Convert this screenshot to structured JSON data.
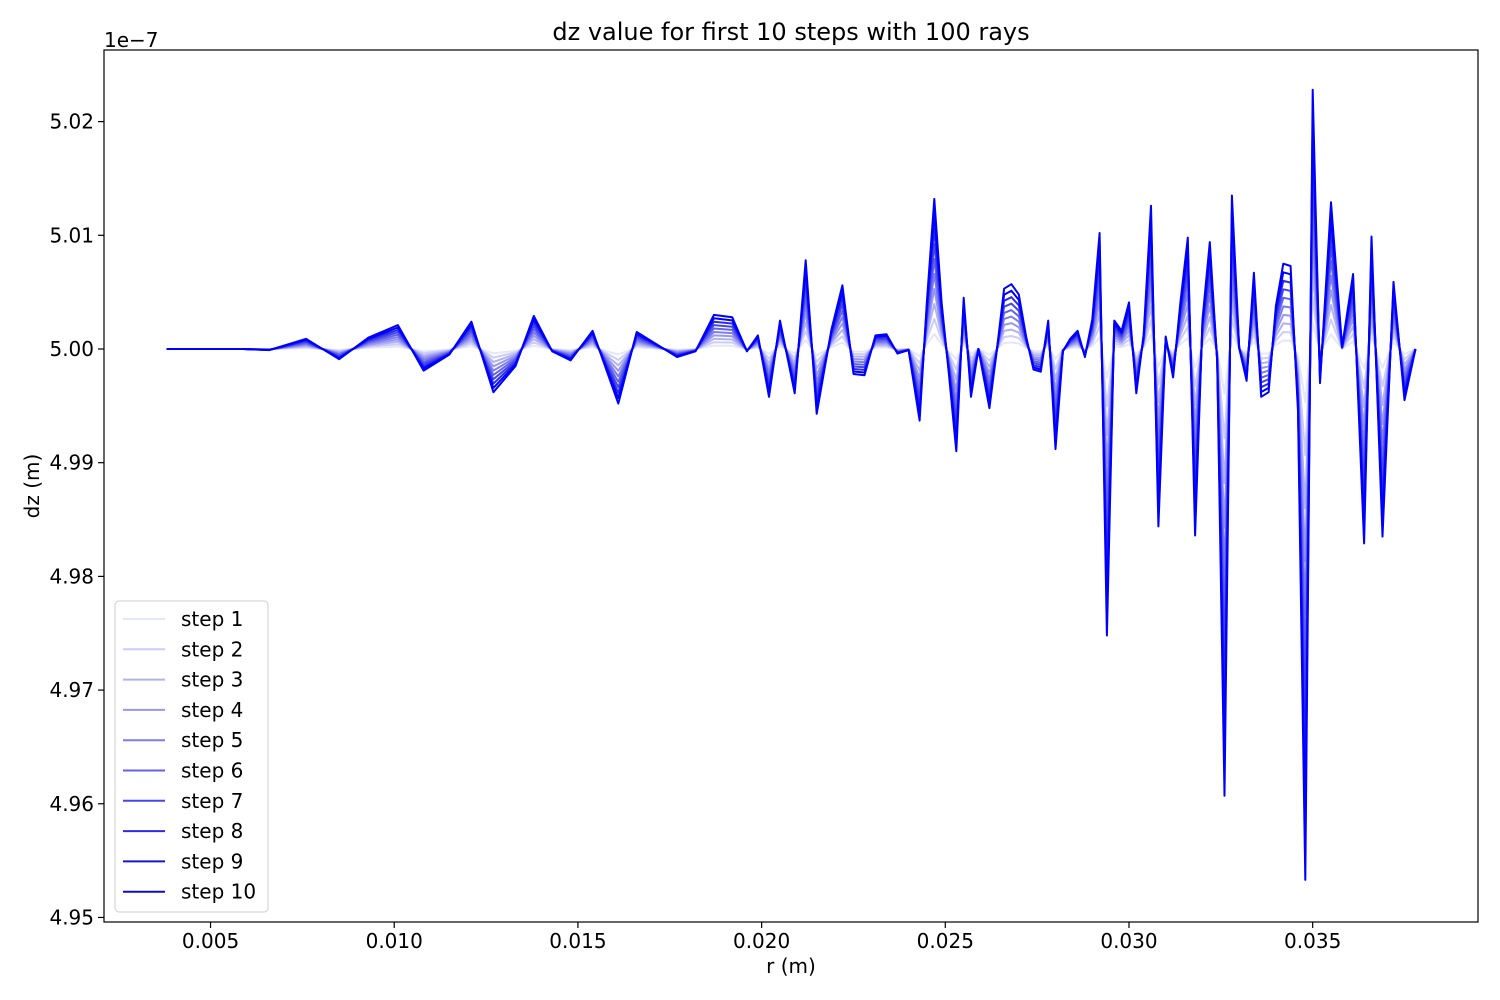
{
  "chart_data": {
    "type": "line",
    "title": "dz value for first 10 steps with 100 rays",
    "xlabel": "r (m)",
    "ylabel": "dz (m)",
    "y_offset_text": "1e−7",
    "xlim": [
      0.0021,
      0.0395
    ],
    "ylim": [
      4.9496,
      5.0263
    ],
    "y_scale_factor": 1e-07,
    "xticks": [
      0.005,
      0.01,
      0.015,
      0.02,
      0.025,
      0.03,
      0.035
    ],
    "xtick_labels": [
      "0.005",
      "0.010",
      "0.015",
      "0.020",
      "0.025",
      "0.030",
      "0.035"
    ],
    "yticks": [
      4.95,
      4.96,
      4.97,
      4.98,
      4.99,
      5.0,
      5.01,
      5.02
    ],
    "ytick_labels": [
      "4.95",
      "4.96",
      "4.97",
      "4.98",
      "4.99",
      "5.00",
      "5.01",
      "5.02"
    ],
    "grid": false,
    "legend_position": "lower-left",
    "x": [
      0.0038,
      0.0045,
      0.0052,
      0.0059,
      0.0066,
      0.0076,
      0.0085,
      0.0093,
      0.0101,
      0.0108,
      0.0115,
      0.0121,
      0.0127,
      0.0133,
      0.0138,
      0.0143,
      0.0148,
      0.0154,
      0.0161,
      0.0166,
      0.0172,
      0.0177,
      0.0182,
      0.0187,
      0.0192,
      0.0196,
      0.0199,
      0.0202,
      0.0205,
      0.0209,
      0.0212,
      0.0215,
      0.0219,
      0.0222,
      0.0225,
      0.0228,
      0.0231,
      0.0234,
      0.0237,
      0.024,
      0.0243,
      0.0245,
      0.0247,
      0.0249,
      0.0251,
      0.0253,
      0.0255,
      0.0257,
      0.0259,
      0.0262,
      0.0264,
      0.0266,
      0.0268,
      0.027,
      0.0272,
      0.0274,
      0.0276,
      0.0278,
      0.028,
      0.0282,
      0.0284,
      0.0286,
      0.0288,
      0.029,
      0.0292,
      0.0294,
      0.0296,
      0.0298,
      0.03,
      0.0302,
      0.0304,
      0.0306,
      0.0308,
      0.031,
      0.0312,
      0.0314,
      0.0316,
      0.0318,
      0.032,
      0.0322,
      0.0324,
      0.0326,
      0.0328,
      0.033,
      0.0332,
      0.0334,
      0.0336,
      0.0338,
      0.034,
      0.0342,
      0.0344,
      0.0346,
      0.0348,
      0.035,
      0.0352,
      0.0355,
      0.0358,
      0.0361,
      0.0364,
      0.0366,
      0.0369,
      0.0372,
      0.0375,
      0.0378
    ],
    "final_values": [
      5.0,
      5.0,
      5.0,
      5.0,
      4.9999,
      5.0009,
      4.9991,
      5.001,
      5.0021,
      4.9981,
      4.9995,
      5.0024,
      4.9962,
      4.9985,
      5.0029,
      4.9998,
      4.999,
      5.0016,
      4.9952,
      5.0015,
      5.0003,
      4.9993,
      4.9998,
      5.003,
      5.0028,
      4.9998,
      5.0012,
      4.9958,
      5.0025,
      4.9961,
      5.0078,
      4.9943,
      5.0017,
      5.0056,
      4.9978,
      4.9977,
      5.0012,
      5.0013,
      4.9996,
      4.9999,
      4.9937,
      5.0042,
      5.0132,
      5.0041,
      4.9977,
      4.991,
      5.0045,
      4.9958,
      5.0,
      4.9948,
      4.9998,
      5.0053,
      5.0057,
      5.0048,
      5.0011,
      4.9982,
      4.998,
      5.0025,
      4.9912,
      4.9998,
      5.0009,
      5.0016,
      4.9993,
      5.0026,
      5.0102,
      4.9748,
      5.0025,
      5.0016,
      5.0041,
      4.9961,
      5.0013,
      5.0126,
      4.9844,
      5.0011,
      4.9975,
      5.0041,
      5.0098,
      4.9836,
      5.0026,
      5.0094,
      4.9989,
      4.9607,
      5.0135,
      5.0001,
      4.9972,
      5.0067,
      4.9958,
      4.9962,
      5.0038,
      5.0075,
      5.0073,
      4.9945,
      4.9533,
      5.0228,
      4.997,
      5.0129,
      5.0002,
      5.0066,
      4.9829,
      5.0099,
      4.9835,
      5.0059,
      4.9955,
      5.0
    ],
    "series": [
      {
        "name": "step 1",
        "color": "#e6e6fb"
      },
      {
        "name": "step 2",
        "color": "#ccccf8"
      },
      {
        "name": "step 3",
        "color": "#b1b1f5"
      },
      {
        "name": "step 4",
        "color": "#9797f1"
      },
      {
        "name": "step 5",
        "color": "#7c7cee"
      },
      {
        "name": "step 6",
        "color": "#6262eb"
      },
      {
        "name": "step 7",
        "color": "#4747e8"
      },
      {
        "name": "step 8",
        "color": "#2c2ce4"
      },
      {
        "name": "step 9",
        "color": "#1616d0"
      },
      {
        "name": "step 10",
        "color": "#0c0cc0"
      }
    ],
    "main_line_color": "#0000ff"
  }
}
